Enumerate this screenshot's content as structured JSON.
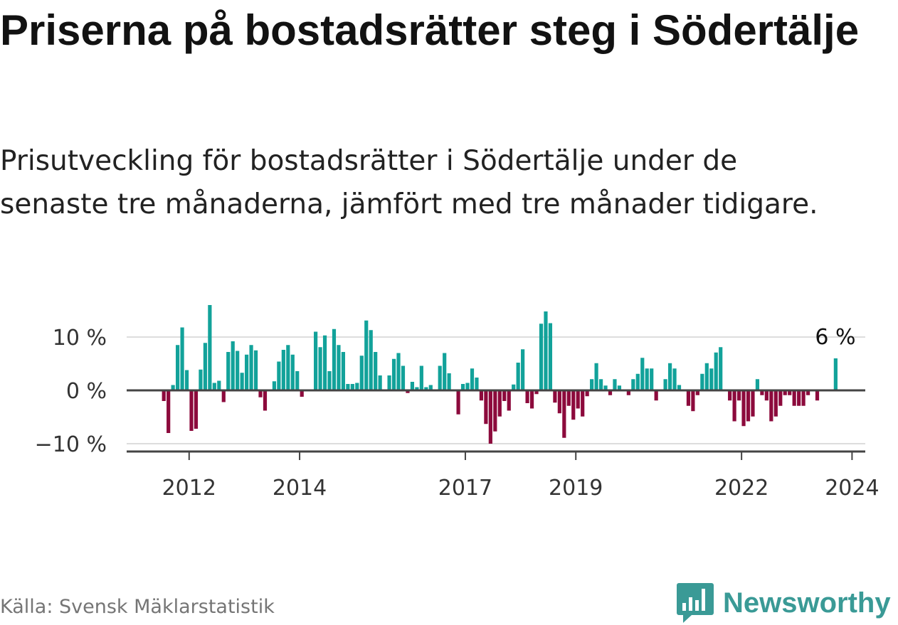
{
  "title": "Priserna på bostadsrätter steg i Södertälje",
  "subtitle": "Prisutveckling för bostadsrätter i Södertälje under de senaste tre månaderna, jämfört med tre månader tidigare.",
  "source": "Källa: Svensk Mäklarstatistik",
  "brand": "Newsworthy",
  "colors": {
    "positive": "#12a29a",
    "negative": "#8c0a3c",
    "grid": "#dddddd",
    "axis": "#444444",
    "brand": "#3a9a96"
  },
  "chart_data": {
    "type": "bar",
    "title": "",
    "xlabel": "",
    "ylabel": "",
    "ylim": [
      -11,
      16
    ],
    "y_ticks": [
      10,
      0,
      -10
    ],
    "y_tick_labels": [
      "10 %",
      "0 %",
      "−10 %"
    ],
    "x_ticks": [
      2012,
      2014,
      2017,
      2019,
      2022,
      2024
    ],
    "x_tick_labels": [
      "2012",
      "2014",
      "2017",
      "2019",
      "2022",
      "2024"
    ],
    "x_start": 2011.5,
    "x_step": 0.0833,
    "annotation": {
      "text": "6 %",
      "target": "last"
    },
    "values": [
      -2,
      -8,
      1,
      8.5,
      11.8,
      3.8,
      -7.6,
      -7.2,
      3.9,
      8.9,
      16,
      1.4,
      1.8,
      -2.2,
      7.2,
      9.2,
      7.4,
      3.3,
      6.7,
      8.5,
      7.5,
      -1.3,
      -3.8,
      0,
      1.7,
      5.4,
      7.6,
      8.5,
      6.7,
      3.6,
      -1.2,
      0,
      0,
      11,
      8.1,
      10.3,
      3.6,
      11.5,
      8.5,
      7.2,
      1.2,
      1.2,
      1.4,
      6.5,
      13.1,
      11.3,
      7.2,
      2.8,
      0,
      2.8,
      5.9,
      7,
      4.6,
      -0.5,
      1.6,
      0.6,
      4.6,
      0.6,
      1,
      0,
      4.6,
      7,
      3.2,
      0,
      -4.5,
      1.2,
      1.4,
      4.1,
      2.4,
      -1.9,
      -6.3,
      -10,
      -7.7,
      -4.9,
      -2,
      -3.8,
      1.1,
      5.2,
      7.7,
      -2.4,
      -3.4,
      -0.7,
      12.5,
      14.8,
      12.6,
      -2.3,
      -4.3,
      -8.9,
      -2.9,
      -5.5,
      -3.4,
      -4.9,
      -1.1,
      2.1,
      5.1,
      2.1,
      0.9,
      -0.9,
      2.1,
      0.9,
      0,
      -0.9,
      2.1,
      3.1,
      6.1,
      4.1,
      4.1,
      -1.9,
      0,
      2.1,
      5.1,
      4.1,
      1,
      0,
      -2.9,
      -3.9,
      -0.9,
      3.1,
      5.1,
      4.1,
      7.1,
      8.1,
      0,
      -1.9,
      -5.8,
      -1.9,
      -6.7,
      -5.8,
      -4.9,
      2.1,
      -0.9,
      -1.9,
      -5.8,
      -4.9,
      -2.9,
      -0.9,
      -0.9,
      -2.9,
      -2.9,
      -2.9,
      -0.9,
      0,
      -1.9,
      0,
      0,
      0,
      6
    ]
  }
}
